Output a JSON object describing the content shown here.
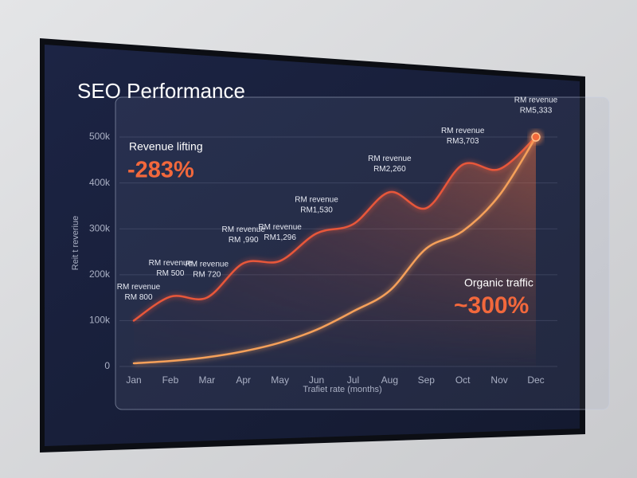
{
  "chart_data": {
    "type": "line",
    "title": "SEO Performance",
    "x_label": "Trafiet rate (months)",
    "y_label": "Reit t reveriue",
    "categories": [
      "Jan",
      "Feb",
      "Mar",
      "Apr",
      "May",
      "Jun",
      "Jul",
      "Aug",
      "Sep",
      "Oct",
      "Nov",
      "Dec"
    ],
    "series": [
      {
        "color": "#e8573a",
        "values": [
          100000,
          152000,
          150000,
          225000,
          230000,
          290000,
          310000,
          380000,
          345000,
          440000,
          430000,
          500000
        ],
        "point_labels": [
          [
            "RM revenue",
            "RM 800"
          ],
          [
            "RM revenue",
            "RM 500"
          ],
          [
            "RM revenue",
            "RM 720"
          ],
          [
            "RM revenue",
            "RM ,990"
          ],
          [
            "RM revenue",
            "RM1,296"
          ],
          [
            "RM revenue",
            "RM1,530"
          ],
          null,
          [
            "RM revenue",
            "RM2,260"
          ],
          null,
          [
            "RM revenue",
            "RM3,703"
          ],
          null,
          [
            "RM revenue",
            "RM5,333"
          ]
        ],
        "callout": {
          "text": "Revenue lifting",
          "value": "-283%"
        }
      },
      {
        "color": "#f5a05a",
        "values": [
          7000,
          12000,
          20000,
          33000,
          52000,
          80000,
          120000,
          165000,
          257000,
          295000,
          373000,
          500000
        ],
        "callout": {
          "text": "Organic traffic",
          "value": "~300%"
        }
      }
    ],
    "ylim": [
      0,
      540000
    ],
    "yticks": [
      0,
      {
        "value": 100000,
        "label": "100k"
      },
      {
        "value": 200000,
        "label": "200k"
      },
      {
        "value": 300000,
        "label": "300k"
      },
      {
        "value": 400000,
        "label": "400k"
      },
      {
        "value": 500000,
        "label": "500k"
      }
    ],
    "grid": true
  }
}
